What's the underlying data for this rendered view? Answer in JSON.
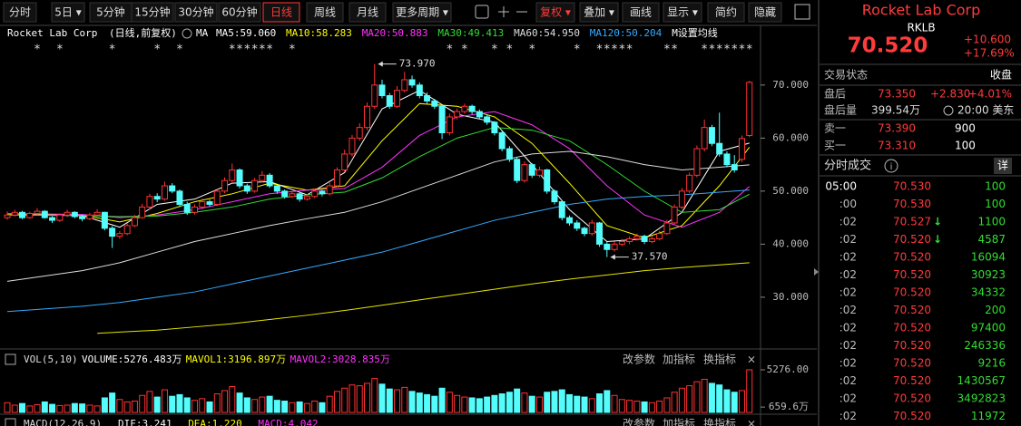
{
  "toolbar": {
    "tabs": [
      "分时",
      "5日 ▾",
      "5分钟",
      "15分钟",
      "30分钟",
      "60分钟",
      "日线",
      "周线",
      "月线",
      "更多周期 ▾",
      "复权 ▾",
      "叠加 ▾",
      "画线",
      "显示 ▾",
      "简约",
      "隐藏"
    ],
    "selected": 6,
    "accent": 10
  },
  "chart_data": {
    "type": "candlestick",
    "title": "Rocket Lab Corp",
    "subtitle": "(日线,前复权)",
    "ma_label": "MA",
    "ma_legend": [
      {
        "text": "MA5:59.060",
        "color": "#ffffff"
      },
      {
        "text": "MA10:58.283",
        "color": "#ffff00"
      },
      {
        "text": "MA20:50.883",
        "color": "#ff33ff"
      },
      {
        "text": "MA30:49.413",
        "color": "#33dd33"
      },
      {
        "text": "MA60:54.950",
        "color": "#dddddd"
      },
      {
        "text": "MA120:50.204",
        "color": "#33aaff"
      }
    ],
    "ma_settings": "M设置均线",
    "event_marker": "*",
    "events": [
      4,
      7,
      14,
      20,
      23,
      30,
      31,
      32,
      33,
      34,
      35,
      38,
      59,
      61,
      65,
      67,
      70,
      76,
      79,
      80,
      81,
      82,
      83,
      88,
      89,
      93,
      94,
      95,
      96,
      97,
      98,
      99
    ],
    "up_color": "#ff3232",
    "down_color": "#54fcfc",
    "candles": [
      [
        45.0,
        46.2,
        44.6,
        45.5
      ],
      [
        45.5,
        46.5,
        45.2,
        46.0
      ],
      [
        46.0,
        46.3,
        44.7,
        45.0
      ],
      [
        45.0,
        46.1,
        44.8,
        45.8
      ],
      [
        45.8,
        46.8,
        45.5,
        46.2
      ],
      [
        46.2,
        46.4,
        44.8,
        45.0
      ],
      [
        45.0,
        45.3,
        44.0,
        44.5
      ],
      [
        44.5,
        45.8,
        44.2,
        45.5
      ],
      [
        45.5,
        46.5,
        45.1,
        46.0
      ],
      [
        46.0,
        46.2,
        44.9,
        45.2
      ],
      [
        45.2,
        45.5,
        44.3,
        44.8
      ],
      [
        44.8,
        45.9,
        44.5,
        45.5
      ],
      [
        45.5,
        46.6,
        45.2,
        46.0
      ],
      [
        46.0,
        46.1,
        42.6,
        43.0
      ],
      [
        43.0,
        43.4,
        39.3,
        41.5
      ],
      [
        41.5,
        42.5,
        41.0,
        42.0
      ],
      [
        42.0,
        43.9,
        41.7,
        43.5
      ],
      [
        43.5,
        45.5,
        43.2,
        45.0
      ],
      [
        45.0,
        47.6,
        44.8,
        47.0
      ],
      [
        47.0,
        49.5,
        46.5,
        49.0
      ],
      [
        49.0,
        49.6,
        47.9,
        48.5
      ],
      [
        48.5,
        51.8,
        48.2,
        51.0
      ],
      [
        51.0,
        51.5,
        49.6,
        50.0
      ],
      [
        50.0,
        50.3,
        47.0,
        47.5
      ],
      [
        47.5,
        48.0,
        45.5,
        46.0
      ],
      [
        46.0,
        47.5,
        45.6,
        47.0
      ],
      [
        47.0,
        48.6,
        46.6,
        48.0
      ],
      [
        48.0,
        48.4,
        47.0,
        47.5
      ],
      [
        47.5,
        50.5,
        47.2,
        50.0
      ],
      [
        50.0,
        52.6,
        49.6,
        52.0
      ],
      [
        52.0,
        55.2,
        51.5,
        54.0
      ],
      [
        54.0,
        54.3,
        50.5,
        51.0
      ],
      [
        51.0,
        51.4,
        49.5,
        50.0
      ],
      [
        50.0,
        52.5,
        49.7,
        52.0
      ],
      [
        52.0,
        53.8,
        51.6,
        53.0
      ],
      [
        53.0,
        53.4,
        50.6,
        51.0
      ],
      [
        51.0,
        51.2,
        49.5,
        50.0
      ],
      [
        50.0,
        50.3,
        48.6,
        49.0
      ],
      [
        49.0,
        50.0,
        48.7,
        49.5
      ],
      [
        49.5,
        49.8,
        48.0,
        48.5
      ],
      [
        48.5,
        49.5,
        48.2,
        49.0
      ],
      [
        49.0,
        50.5,
        48.7,
        50.0
      ],
      [
        50.0,
        50.2,
        49.0,
        49.5
      ],
      [
        49.5,
        51.6,
        49.2,
        51.0
      ],
      [
        51.0,
        54.5,
        50.7,
        54.0
      ],
      [
        54.0,
        57.8,
        53.6,
        57.0
      ],
      [
        57.0,
        60.6,
        56.5,
        60.0
      ],
      [
        60.0,
        62.8,
        59.5,
        62.0
      ],
      [
        62.0,
        66.7,
        61.5,
        66.0
      ],
      [
        66.0,
        73.97,
        65.5,
        70.0
      ],
      [
        70.0,
        71.0,
        67.5,
        68.0
      ],
      [
        68.0,
        68.5,
        65.5,
        66.0
      ],
      [
        66.0,
        69.8,
        65.7,
        69.0
      ],
      [
        69.0,
        72.5,
        68.6,
        71.0
      ],
      [
        71.0,
        71.8,
        69.5,
        70.0
      ],
      [
        70.0,
        70.5,
        67.5,
        68.0
      ],
      [
        68.0,
        68.6,
        66.5,
        67.0
      ],
      [
        67.0,
        67.4,
        65.5,
        66.0
      ],
      [
        66.0,
        66.2,
        59.8,
        61.0
      ],
      [
        61.0,
        64.6,
        60.5,
        64.0
      ],
      [
        64.0,
        65.6,
        63.5,
        65.0
      ],
      [
        65.0,
        66.5,
        64.6,
        66.0
      ],
      [
        66.0,
        66.3,
        64.5,
        65.0
      ],
      [
        65.0,
        65.4,
        63.5,
        64.0
      ],
      [
        64.0,
        64.5,
        62.5,
        63.0
      ],
      [
        63.0,
        63.2,
        60.5,
        61.0
      ],
      [
        61.0,
        61.3,
        57.5,
        58.0
      ],
      [
        58.0,
        58.5,
        55.5,
        56.0
      ],
      [
        56.0,
        56.3,
        51.5,
        52.0
      ],
      [
        52.0,
        55.6,
        51.6,
        55.0
      ],
      [
        55.0,
        55.3,
        52.5,
        53.0
      ],
      [
        53.0,
        54.6,
        52.6,
        54.0
      ],
      [
        54.0,
        54.2,
        49.5,
        50.0
      ],
      [
        50.0,
        50.3,
        47.5,
        48.0
      ],
      [
        48.0,
        48.2,
        44.5,
        45.0
      ],
      [
        45.0,
        45.4,
        43.5,
        44.0
      ],
      [
        44.0,
        44.5,
        42.5,
        43.0
      ],
      [
        43.0,
        43.3,
        41.5,
        42.0
      ],
      [
        42.0,
        44.6,
        41.6,
        44.0
      ],
      [
        44.0,
        44.2,
        39.5,
        40.0
      ],
      [
        40.0,
        40.4,
        37.57,
        39.0
      ],
      [
        39.0,
        40.5,
        38.6,
        40.0
      ],
      [
        40.0,
        41.0,
        39.6,
        40.5
      ],
      [
        40.5,
        41.5,
        40.0,
        41.0
      ],
      [
        41.0,
        42.0,
        40.7,
        41.5
      ],
      [
        41.5,
        41.8,
        40.0,
        40.5
      ],
      [
        40.5,
        41.5,
        40.2,
        41.0
      ],
      [
        41.0,
        42.5,
        40.7,
        42.0
      ],
      [
        42.0,
        44.6,
        41.7,
        44.0
      ],
      [
        44.0,
        47.5,
        43.7,
        47.0
      ],
      [
        47.0,
        50.6,
        46.6,
        50.0
      ],
      [
        50.0,
        53.5,
        49.6,
        53.0
      ],
      [
        53.0,
        58.6,
        52.6,
        58.0
      ],
      [
        58.0,
        63.5,
        57.5,
        62.0
      ],
      [
        62.0,
        62.5,
        58.5,
        59.0
      ],
      [
        59.0,
        64.8,
        56.5,
        57.0
      ],
      [
        57.0,
        57.5,
        54.5,
        55.0
      ],
      [
        55.0,
        56.8,
        53.5,
        54.0
      ],
      [
        56.0,
        60.5,
        55.5,
        59.92
      ],
      [
        60.5,
        70.8,
        60.2,
        70.52
      ]
    ],
    "lines": [
      {
        "color": "#ffffff",
        "x": [
          0,
          10,
          15,
          20,
          25,
          30,
          35,
          40,
          45,
          50,
          55,
          60,
          65,
          70,
          75,
          80,
          85,
          90,
          95,
          99
        ],
        "values": [
          45.5,
          45.4,
          43.2,
          47.5,
          48.5,
          51.5,
          51.8,
          49.3,
          53.5,
          65.5,
          69.0,
          64.5,
          63.0,
          55.0,
          46.5,
          40.5,
          41.0,
          46.0,
          57.5,
          59.06
        ]
      },
      {
        "color": "#ffff00",
        "x": [
          0,
          10,
          15,
          20,
          25,
          30,
          35,
          40,
          45,
          50,
          55,
          60,
          65,
          70,
          75,
          80,
          85,
          90,
          95,
          99
        ],
        "values": [
          45.6,
          45.5,
          44.2,
          45.8,
          48.0,
          49.5,
          51.5,
          50.2,
          51.0,
          59.5,
          66.5,
          66.0,
          64.0,
          59.0,
          51.5,
          43.5,
          41.2,
          43.5,
          51.0,
          58.283
        ]
      },
      {
        "color": "#ff33ff",
        "x": [
          0,
          10,
          15,
          20,
          25,
          30,
          35,
          40,
          45,
          50,
          55,
          60,
          65,
          70,
          75,
          80,
          85,
          90,
          95,
          99
        ],
        "values": [
          45.8,
          45.6,
          45.0,
          45.5,
          46.5,
          48.0,
          49.5,
          50.2,
          50.5,
          54.5,
          60.5,
          64.0,
          65.0,
          62.5,
          58.0,
          51.0,
          45.5,
          43.2,
          46.0,
          50.883
        ]
      },
      {
        "color": "#33dd33",
        "x": [
          0,
          10,
          15,
          20,
          25,
          30,
          35,
          40,
          45,
          50,
          55,
          60,
          65,
          70,
          75,
          80,
          85,
          90,
          95,
          99
        ],
        "values": [
          45.5,
          45.4,
          45.2,
          45.3,
          46.0,
          47.0,
          48.5,
          49.3,
          49.8,
          52.5,
          56.5,
          60.0,
          62.0,
          61.5,
          59.5,
          55.0,
          50.0,
          46.0,
          46.5,
          49.413
        ]
      },
      {
        "color": "#dddddd",
        "x": [
          0,
          10,
          15,
          20,
          25,
          30,
          35,
          40,
          45,
          50,
          55,
          60,
          65,
          70,
          75,
          80,
          85,
          90,
          95,
          99
        ],
        "values": [
          33.0,
          35.0,
          36.5,
          38.5,
          40.5,
          42.0,
          43.5,
          44.8,
          46.0,
          48.0,
          50.5,
          53.0,
          55.5,
          57.0,
          57.5,
          56.5,
          55.0,
          54.0,
          54.5,
          54.95
        ]
      },
      {
        "color": "#33aaff",
        "x": [
          0,
          10,
          15,
          20,
          25,
          30,
          35,
          40,
          45,
          50,
          55,
          60,
          65,
          70,
          75,
          80,
          85,
          90,
          95,
          99
        ],
        "values": [
          27.3,
          28.3,
          29.0,
          30.0,
          31.0,
          32.5,
          34.0,
          35.5,
          37.0,
          38.5,
          40.5,
          42.5,
          44.5,
          46.0,
          47.5,
          48.5,
          49.0,
          49.3,
          49.8,
          50.204
        ]
      },
      {
        "color": "#e6e600",
        "x": [
          12,
          20,
          25,
          30,
          35,
          40,
          45,
          50,
          55,
          60,
          65,
          70,
          75,
          80,
          85,
          90,
          95,
          99
        ],
        "values": [
          23.2,
          23.8,
          24.4,
          25.0,
          25.8,
          26.6,
          27.5,
          28.5,
          29.5,
          30.5,
          31.5,
          32.5,
          33.4,
          34.2,
          35.0,
          35.6,
          36.1,
          36.5
        ]
      }
    ],
    "ylim": [
      21.1,
      79.2
    ],
    "yticks": [
      {
        "value": 30,
        "label": "30.000"
      },
      {
        "value": 40,
        "label": "40.000"
      },
      {
        "value": 50,
        "label": "50.000"
      },
      {
        "value": 60,
        "label": "60.000"
      },
      {
        "value": 70,
        "label": "70.000"
      }
    ],
    "annotations": [
      {
        "index": 49,
        "value": 73.97,
        "label": "73.970"
      },
      {
        "index": 80,
        "value": 37.57,
        "label": "37.570"
      }
    ],
    "volume": {
      "title": "VOL(5,10)",
      "legend": [
        {
          "text": "VOLUME:5276.483万",
          "color": "#ffffff"
        },
        {
          "text": "MAVOL1:3196.897万",
          "color": "#ffff00"
        },
        {
          "text": "MAVOL2:3028.835万",
          "color": "#ff33ff"
        }
      ],
      "buttons": [
        "改参数",
        "加指标",
        "换指标",
        "×"
      ],
      "values": [
        1200,
        900,
        1100,
        800,
        950,
        1300,
        1000,
        850,
        900,
        1100,
        1050,
        900,
        800,
        1800,
        2400,
        1600,
        1300,
        1400,
        2100,
        2600,
        1900,
        2800,
        2000,
        2200,
        1800,
        1500,
        1700,
        1300,
        2300,
        2700,
        3200,
        2400,
        1800,
        1600,
        1900,
        2000,
        1500,
        1400,
        1200,
        1300,
        1100,
        1400,
        1200,
        2000,
        2600,
        3000,
        3400,
        3300,
        3600,
        4200,
        3500,
        2900,
        2800,
        3100,
        2600,
        2400,
        2200,
        2000,
        3000,
        2500,
        2100,
        1900,
        1800,
        1700,
        1900,
        2100,
        2300,
        2500,
        2900,
        2400,
        2000,
        1900,
        2500,
        2600,
        2800,
        2200,
        2000,
        1900,
        1700,
        2300,
        2700,
        2100,
        1600,
        1500,
        1400,
        1300,
        1200,
        1400,
        1800,
        2500,
        3000,
        3300,
        3800,
        4100,
        3600,
        3400,
        2800,
        2500,
        2700,
        5276.483
      ],
      "ylim": [
        0,
        5276
      ],
      "yticks": [
        {
          "value": 5276,
          "label": "5276.00"
        },
        {
          "value": 659.6,
          "label": "659.6万"
        }
      ]
    },
    "macd": {
      "title": "MACD(12,26,9)",
      "legend": [
        {
          "text": "DIF:3.241",
          "color": "#ffffff"
        },
        {
          "text": "DEA:1.220",
          "color": "#ffff00"
        },
        {
          "text": "MACD:4.042",
          "color": "#ff33ff"
        }
      ]
    }
  },
  "quote": {
    "name": "Rocket Lab Corp",
    "symbol": "RKLB",
    "price": "70.520",
    "change": "+10.600",
    "change_pct": "+17.69%",
    "status_label": "交易状态",
    "status": "收盘",
    "after_label": "盘后",
    "after_price": "73.350",
    "after_change": "+2.830",
    "after_pct": "+4.01%",
    "after_vol_label": "盘后量",
    "after_vol": "399.54万",
    "time": "20:00 美东",
    "ask_label": "卖一",
    "ask_price": "73.390",
    "ask_vol": "900",
    "bid_label": "买一",
    "bid_price": "73.310",
    "bid_vol": "100"
  },
  "trades": {
    "title": "分时成交",
    "detail": "详",
    "rows": [
      {
        "time": "05:00",
        "price": "70.530",
        "volume": "100"
      },
      {
        "time": ":00",
        "price": "70.530",
        "volume": "100"
      },
      {
        "time": ":02",
        "price": "70.527",
        "volume": "1100",
        "arrow": "↓"
      },
      {
        "time": ":02",
        "price": "70.520",
        "volume": "4587",
        "arrow": "↓"
      },
      {
        "time": ":02",
        "price": "70.520",
        "volume": "16094"
      },
      {
        "time": ":02",
        "price": "70.520",
        "volume": "30923"
      },
      {
        "time": ":02",
        "price": "70.520",
        "volume": "34332"
      },
      {
        "time": ":02",
        "price": "70.520",
        "volume": "200"
      },
      {
        "time": ":02",
        "price": "70.520",
        "volume": "97400"
      },
      {
        "time": ":02",
        "price": "70.520",
        "volume": "246336"
      },
      {
        "time": ":02",
        "price": "70.520",
        "volume": "9216"
      },
      {
        "time": ":02",
        "price": "70.520",
        "volume": "1430567"
      },
      {
        "time": ":02",
        "price": "70.520",
        "volume": "3492823"
      },
      {
        "time": ":02",
        "price": "70.520",
        "volume": "11972"
      }
    ]
  }
}
